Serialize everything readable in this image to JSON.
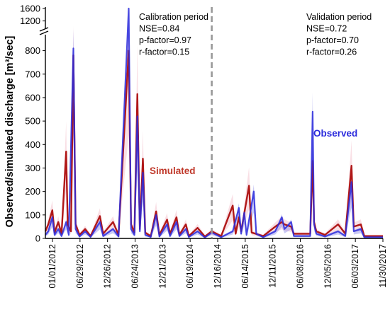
{
  "chart_data": {
    "type": "line",
    "ylabel": "Observed/simulated discharge [m³/sec]",
    "y_axis": {
      "broken": true,
      "lower_range": [
        0,
        850
      ],
      "upper_range": [
        1100,
        1600
      ],
      "lower_ticks": [
        "0",
        "100",
        "200",
        "300",
        "400",
        "500",
        "600",
        "700",
        "800"
      ],
      "upper_ticks": [
        "1200",
        "1600"
      ]
    },
    "x_axis": {
      "range": [
        "2012-01-01",
        "2017-12-31"
      ],
      "tick_labels": [
        "01/01/2012",
        "06/29/2012",
        "12/26/2012",
        "06/24/2013",
        "12/21/2013",
        "06/19/2014",
        "12/16/2014",
        "06/14/2015",
        "12/11/2015",
        "06/08/2016",
        "12/05/2016",
        "06/03/2017",
        "11/30/2017"
      ]
    },
    "divider_date": "2014-12-16",
    "periods": [
      {
        "lines": [
          "Calibration period",
          "NSE=0.84",
          "p-factor=0.97",
          "r-factor=0.15"
        ]
      },
      {
        "lines": [
          "Validation period",
          "NSE=0.72",
          "p-factor=0.70",
          "r-factor=0.26"
        ]
      }
    ],
    "series": [
      {
        "name": "Observed",
        "color": "#2b2bdc",
        "points": [
          [
            "2012-01-01",
            15
          ],
          [
            "2012-01-20",
            30
          ],
          [
            "2012-02-15",
            90
          ],
          [
            "2012-03-01",
            15
          ],
          [
            "2012-03-25",
            40
          ],
          [
            "2012-04-15",
            10
          ],
          [
            "2012-05-15",
            70
          ],
          [
            "2012-06-01",
            15
          ],
          [
            "2012-07-01",
            810
          ],
          [
            "2012-07-15",
            40
          ],
          [
            "2012-08-10",
            8
          ],
          [
            "2012-09-15",
            30
          ],
          [
            "2012-10-20",
            6
          ],
          [
            "2012-12-20",
            70
          ],
          [
            "2013-01-10",
            10
          ],
          [
            "2013-03-15",
            40
          ],
          [
            "2013-04-20",
            8
          ],
          [
            "2013-06-25",
            1600
          ],
          [
            "2013-07-10",
            40
          ],
          [
            "2013-08-01",
            15
          ],
          [
            "2013-08-20",
            520
          ],
          [
            "2013-09-05",
            30
          ],
          [
            "2013-09-25",
            280
          ],
          [
            "2013-10-10",
            15
          ],
          [
            "2013-11-15",
            6
          ],
          [
            "2013-12-20",
            100
          ],
          [
            "2014-01-10",
            8
          ],
          [
            "2014-03-01",
            60
          ],
          [
            "2014-03-20",
            10
          ],
          [
            "2014-05-01",
            70
          ],
          [
            "2014-05-20",
            10
          ],
          [
            "2014-07-01",
            40
          ],
          [
            "2014-07-20",
            6
          ],
          [
            "2014-09-15",
            30
          ],
          [
            "2014-11-01",
            4
          ],
          [
            "2014-12-16",
            25
          ],
          [
            "2015-02-15",
            5
          ],
          [
            "2015-05-01",
            30
          ],
          [
            "2015-06-10",
            130
          ],
          [
            "2015-06-25",
            20
          ],
          [
            "2015-07-15",
            110
          ],
          [
            "2015-07-30",
            15
          ],
          [
            "2015-09-15",
            200
          ],
          [
            "2015-10-01",
            20
          ],
          [
            "2015-11-15",
            5
          ],
          [
            "2016-02-01",
            30
          ],
          [
            "2016-03-15",
            90
          ],
          [
            "2016-04-01",
            40
          ],
          [
            "2016-05-15",
            70
          ],
          [
            "2016-06-01",
            10
          ],
          [
            "2016-09-15",
            10
          ],
          [
            "2016-10-01",
            540
          ],
          [
            "2016-10-10",
            60
          ],
          [
            "2016-10-25",
            20
          ],
          [
            "2016-12-20",
            8
          ],
          [
            "2017-03-15",
            30
          ],
          [
            "2017-05-01",
            10
          ],
          [
            "2017-06-10",
            240
          ],
          [
            "2017-06-25",
            30
          ],
          [
            "2017-08-10",
            40
          ],
          [
            "2017-09-01",
            5
          ],
          [
            "2017-12-31",
            5
          ]
        ]
      },
      {
        "name": "Simulated",
        "color": "#b01818",
        "points": [
          [
            "2012-01-01",
            30
          ],
          [
            "2012-01-20",
            60
          ],
          [
            "2012-02-15",
            120
          ],
          [
            "2012-03-01",
            25
          ],
          [
            "2012-03-25",
            70
          ],
          [
            "2012-04-15",
            20
          ],
          [
            "2012-05-15",
            370
          ],
          [
            "2012-05-25",
            60
          ],
          [
            "2012-06-15",
            30
          ],
          [
            "2012-07-01",
            780
          ],
          [
            "2012-07-15",
            60
          ],
          [
            "2012-08-10",
            15
          ],
          [
            "2012-09-15",
            40
          ],
          [
            "2012-10-20",
            10
          ],
          [
            "2012-12-20",
            95
          ],
          [
            "2013-01-10",
            20
          ],
          [
            "2013-03-15",
            70
          ],
          [
            "2013-04-20",
            15
          ],
          [
            "2013-06-25",
            800
          ],
          [
            "2013-07-10",
            60
          ],
          [
            "2013-08-01",
            25
          ],
          [
            "2013-08-20",
            615
          ],
          [
            "2013-09-05",
            40
          ],
          [
            "2013-09-25",
            340
          ],
          [
            "2013-10-10",
            25
          ],
          [
            "2013-11-15",
            10
          ],
          [
            "2013-12-20",
            115
          ],
          [
            "2014-01-10",
            15
          ],
          [
            "2014-03-01",
            80
          ],
          [
            "2014-03-20",
            20
          ],
          [
            "2014-05-01",
            90
          ],
          [
            "2014-05-20",
            15
          ],
          [
            "2014-07-01",
            60
          ],
          [
            "2014-07-20",
            10
          ],
          [
            "2014-09-15",
            45
          ],
          [
            "2014-11-01",
            8
          ],
          [
            "2014-12-16",
            30
          ],
          [
            "2015-02-15",
            10
          ],
          [
            "2015-05-01",
            140
          ],
          [
            "2015-05-20",
            20
          ],
          [
            "2015-06-10",
            90
          ],
          [
            "2015-06-25",
            30
          ],
          [
            "2015-08-15",
            225
          ],
          [
            "2015-09-01",
            25
          ],
          [
            "2015-11-15",
            10
          ],
          [
            "2016-02-01",
            50
          ],
          [
            "2016-03-15",
            70
          ],
          [
            "2016-04-01",
            60
          ],
          [
            "2016-05-15",
            50
          ],
          [
            "2016-06-01",
            20
          ],
          [
            "2016-09-15",
            20
          ],
          [
            "2016-10-01",
            330
          ],
          [
            "2016-10-10",
            70
          ],
          [
            "2016-10-25",
            30
          ],
          [
            "2016-12-20",
            15
          ],
          [
            "2017-03-15",
            60
          ],
          [
            "2017-05-01",
            20
          ],
          [
            "2017-06-10",
            310
          ],
          [
            "2017-06-25",
            50
          ],
          [
            "2017-08-10",
            60
          ],
          [
            "2017-09-01",
            10
          ],
          [
            "2017-12-31",
            10
          ]
        ]
      }
    ],
    "series_labels": [
      {
        "name": "Observed",
        "label": "Observed",
        "color": "#2b2bdc"
      },
      {
        "name": "Simulated",
        "label": "Simulated",
        "color": "#c0392b"
      }
    ],
    "grid": false,
    "colors": {
      "observed_band": "#8a8ae8",
      "simulated_band": "#f2b8c6",
      "divider": "#999999"
    }
  }
}
